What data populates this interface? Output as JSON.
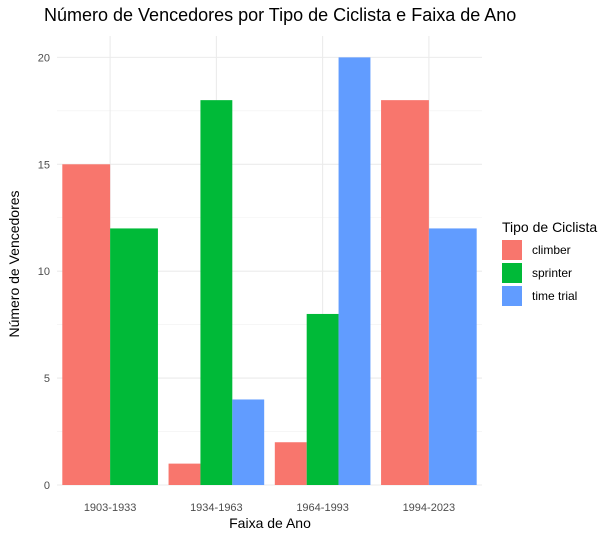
{
  "chart_data": {
    "type": "bar",
    "title": "Número de Vencedores por Tipo de Ciclista e Faixa de Ano",
    "xlabel": "Faixa de Ano",
    "ylabel": "Número de Vencedores",
    "categories": [
      "1903-1933",
      "1934-1963",
      "1964-1993",
      "1994-2023"
    ],
    "series": [
      {
        "name": "climber",
        "color": "#F8766D",
        "values": [
          15,
          1,
          2,
          18
        ]
      },
      {
        "name": "sprinter",
        "color": "#00BA38",
        "values": [
          12,
          18,
          8,
          null
        ]
      },
      {
        "name": "time trial",
        "color": "#619CFF",
        "values": [
          null,
          4,
          20,
          12
        ]
      }
    ],
    "ylim": [
      0,
      21
    ],
    "yticks": [
      0,
      5,
      10,
      15,
      20
    ],
    "legend": {
      "title": "Tipo de Ciclista",
      "position": "right"
    },
    "grid": true
  }
}
